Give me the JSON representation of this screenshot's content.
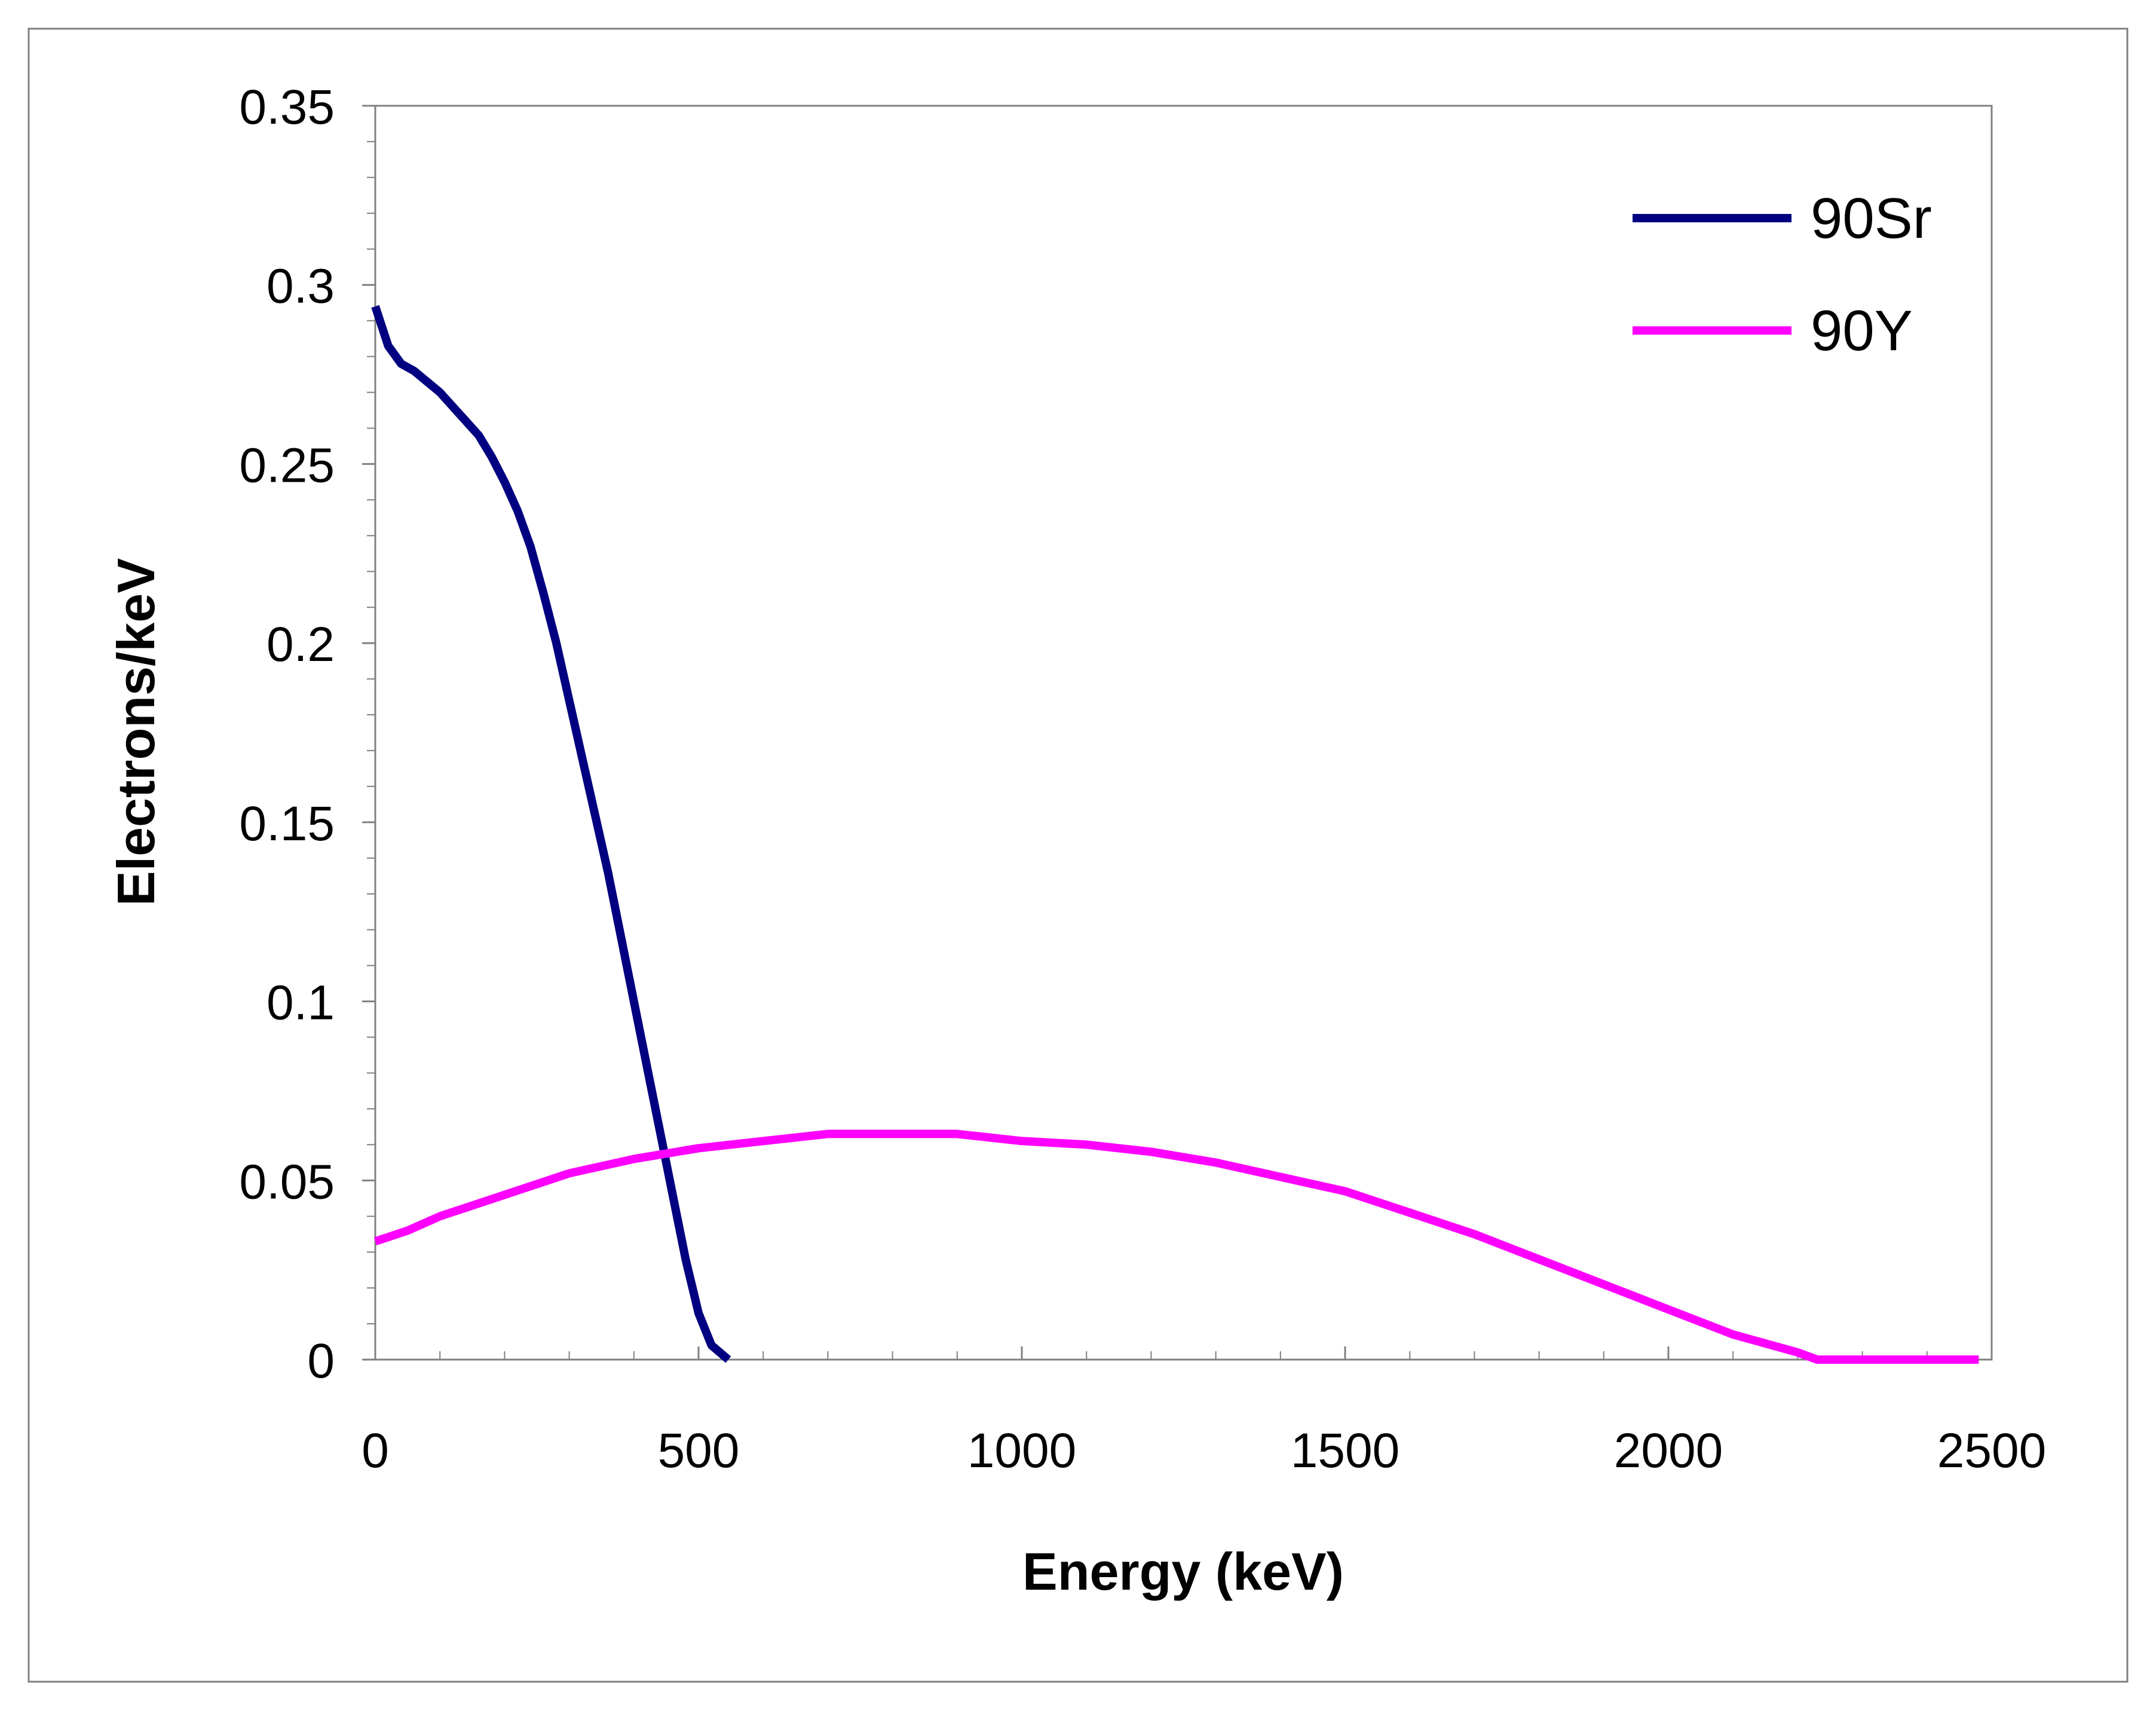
{
  "chart_data": {
    "type": "line",
    "title": "",
    "xlabel": "Energy (keV)",
    "ylabel": "Electrons/keV",
    "xlim": [
      0,
      2500
    ],
    "ylim": [
      0,
      0.35
    ],
    "xticks": [
      0,
      500,
      1000,
      1500,
      2000,
      2500
    ],
    "xtick_labels": [
      "0",
      "500",
      "1000",
      "1500",
      "2000",
      "2500"
    ],
    "yticks": [
      0,
      0.05,
      0.1,
      0.15,
      0.2,
      0.25,
      0.3,
      0.35
    ],
    "ytick_labels": [
      "0",
      "0.05",
      "0.1",
      "0.15",
      "0.2",
      "0.25",
      "0.3",
      "0.35"
    ],
    "grid": false,
    "legend_position": "top-right",
    "series": [
      {
        "name": "90Sr",
        "color": "#000080",
        "x": [
          0,
          20,
          40,
          60,
          80,
          100,
          120,
          140,
          160,
          180,
          200,
          220,
          240,
          260,
          280,
          300,
          320,
          340,
          360,
          380,
          400,
          420,
          440,
          460,
          480,
          500,
          520,
          546
        ],
        "y": [
          0.294,
          0.283,
          0.278,
          0.276,
          0.273,
          0.27,
          0.266,
          0.262,
          0.258,
          0.252,
          0.245,
          0.237,
          0.227,
          0.214,
          0.2,
          0.184,
          0.168,
          0.152,
          0.136,
          0.118,
          0.1,
          0.082,
          0.064,
          0.046,
          0.028,
          0.013,
          0.004,
          0.0
        ]
      },
      {
        "name": "90Y",
        "color": "#FF00FF",
        "x": [
          0,
          50,
          100,
          200,
          300,
          400,
          500,
          600,
          700,
          800,
          900,
          1000,
          1100,
          1200,
          1300,
          1400,
          1500,
          1600,
          1700,
          1800,
          1900,
          2000,
          2100,
          2200,
          2230,
          2480
        ],
        "y": [
          0.033,
          0.036,
          0.04,
          0.046,
          0.052,
          0.056,
          0.059,
          0.061,
          0.063,
          0.063,
          0.063,
          0.061,
          0.06,
          0.058,
          0.055,
          0.051,
          0.047,
          0.041,
          0.035,
          0.028,
          0.021,
          0.014,
          0.007,
          0.002,
          0.0,
          0.0
        ]
      }
    ]
  }
}
